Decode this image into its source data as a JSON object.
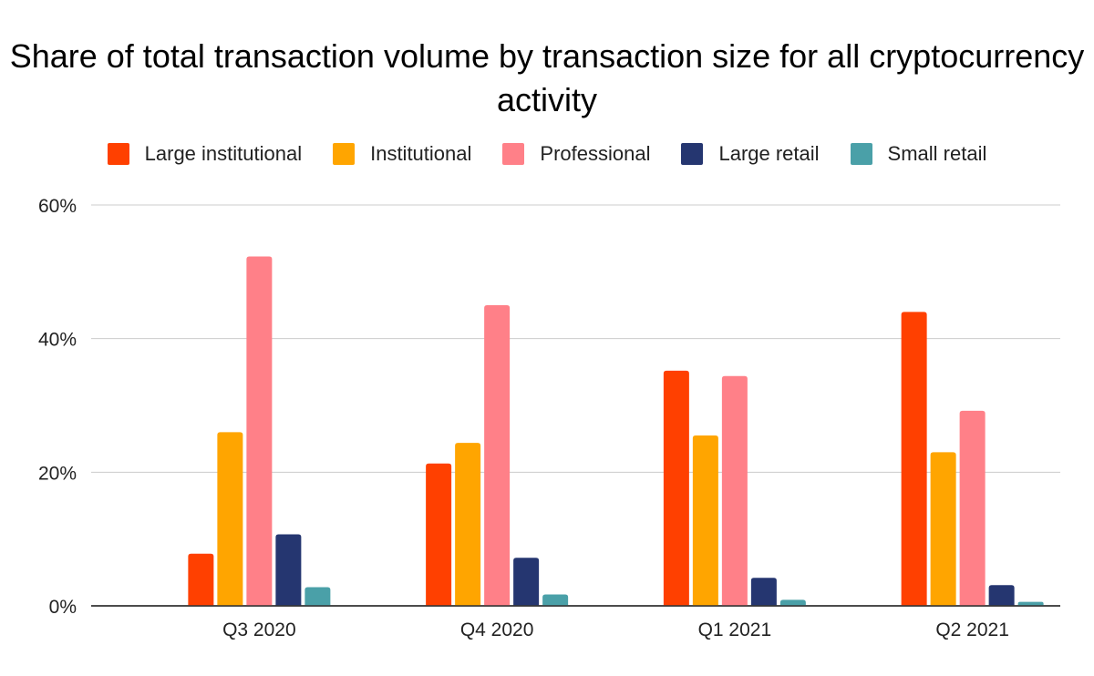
{
  "chart_data": {
    "type": "bar",
    "title": "Share of total transaction volume by transaction size for all cryptocurrency activity",
    "xlabel": "",
    "ylabel": "",
    "categories": [
      "Q3 2020",
      "Q4 2020",
      "Q1 2021",
      "Q2 2021"
    ],
    "ylim": [
      0,
      60
    ],
    "yticks": [
      0,
      20,
      40,
      60
    ],
    "ytick_labels": [
      "0%",
      "20%",
      "40%",
      "60%"
    ],
    "grid": true,
    "legend_position": "top",
    "series": [
      {
        "name": "Large institutional",
        "color": "#ff4000",
        "values": [
          7.8,
          21.3,
          35.2,
          44.0
        ]
      },
      {
        "name": "Institutional",
        "color": "#ffa500",
        "values": [
          26.0,
          24.4,
          25.5,
          23.0
        ]
      },
      {
        "name": "Professional",
        "color": "#ff8088",
        "values": [
          52.3,
          45.0,
          34.4,
          29.2
        ]
      },
      {
        "name": "Large retail",
        "color": "#253670",
        "values": [
          10.7,
          7.2,
          4.2,
          3.1
        ]
      },
      {
        "name": "Small retail",
        "color": "#4aa0a8",
        "values": [
          2.8,
          1.7,
          0.9,
          0.6
        ]
      }
    ]
  }
}
